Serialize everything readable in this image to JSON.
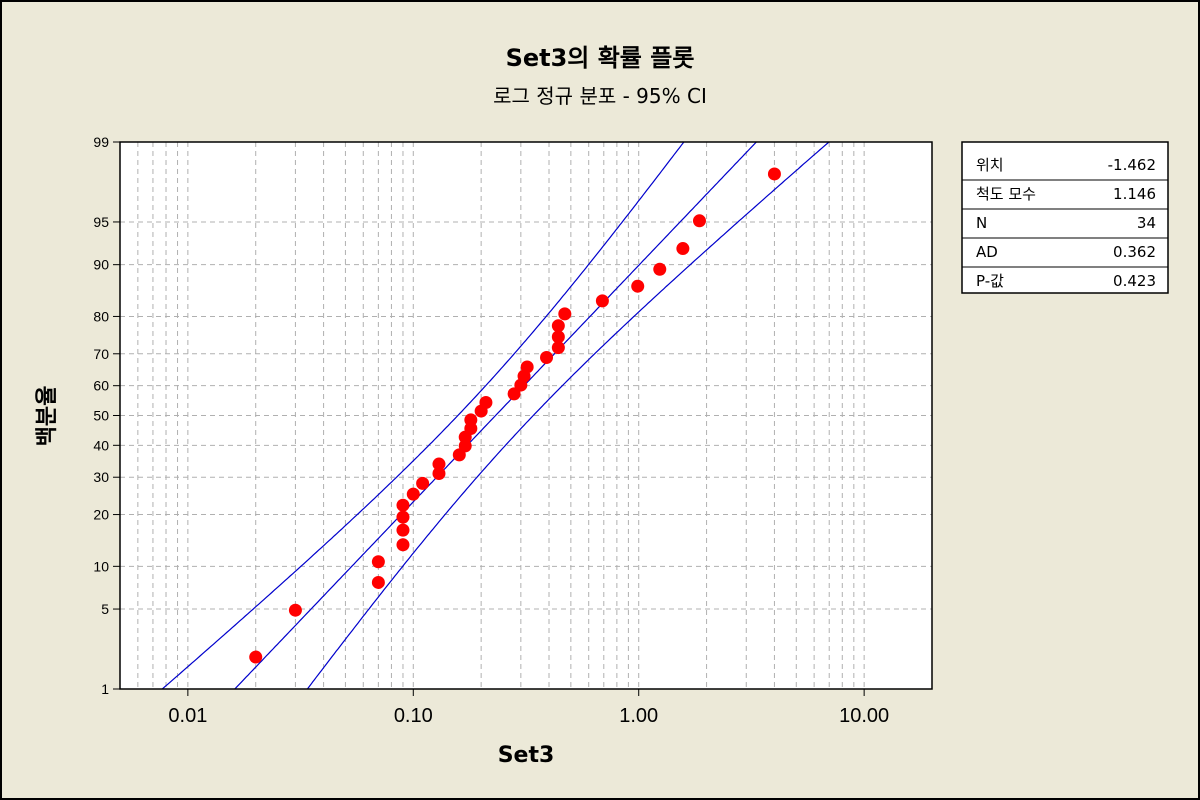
{
  "colors": {
    "background": "#ece9d8",
    "plot_background": "#ffffff",
    "points": "#ff0000",
    "lines": "#0000cc",
    "grid": "#b0b0b0"
  },
  "chart_data": {
    "type": "scatter",
    "title": "Set3의 확률 플롯",
    "subtitle": "로그 정규 분포 - 95% CI",
    "xlabel": "Set3",
    "ylabel": "백분율",
    "x_scale": "log",
    "y_scale": "normal-probability",
    "xlim": [
      0.005,
      20
    ],
    "ylim": [
      1,
      99
    ],
    "x_ticks": [
      {
        "value": 0.01,
        "label": "0.01"
      },
      {
        "value": 0.1,
        "label": "0.10"
      },
      {
        "value": 1,
        "label": "1.00"
      },
      {
        "value": 10,
        "label": "10.00"
      }
    ],
    "y_ticks": [
      {
        "value": 1,
        "label": "1"
      },
      {
        "value": 5,
        "label": "5"
      },
      {
        "value": 10,
        "label": "10"
      },
      {
        "value": 20,
        "label": "20"
      },
      {
        "value": 30,
        "label": "30"
      },
      {
        "value": 40,
        "label": "40"
      },
      {
        "value": 50,
        "label": "50"
      },
      {
        "value": 60,
        "label": "60"
      },
      {
        "value": 70,
        "label": "70"
      },
      {
        "value": 80,
        "label": "80"
      },
      {
        "value": 90,
        "label": "90"
      },
      {
        "value": 95,
        "label": "95"
      },
      {
        "value": 99,
        "label": "99"
      }
    ],
    "grid": true,
    "legend_position": "right",
    "stats": [
      {
        "label": "위치",
        "value": "-1.462"
      },
      {
        "label": "척도 모수",
        "value": "1.146"
      },
      {
        "label": "N",
        "value": "34"
      },
      {
        "label": "AD",
        "value": "0.362"
      },
      {
        "label": "P-값",
        "value": "0.423"
      }
    ],
    "fit": {
      "location": -1.462,
      "scale": 1.146,
      "n": 34,
      "ci": 0.95
    },
    "points": [
      {
        "x": 0.02,
        "y": 2.0
      },
      {
        "x": 0.03,
        "y": 4.9
      },
      {
        "x": 0.07,
        "y": 7.8
      },
      {
        "x": 0.07,
        "y": 10.7
      },
      {
        "x": 0.09,
        "y": 13.6
      },
      {
        "x": 0.09,
        "y": 16.5
      },
      {
        "x": 0.09,
        "y": 19.4
      },
      {
        "x": 0.09,
        "y": 22.3
      },
      {
        "x": 0.1,
        "y": 25.2
      },
      {
        "x": 0.11,
        "y": 28.2
      },
      {
        "x": 0.13,
        "y": 31.1
      },
      {
        "x": 0.13,
        "y": 34.0
      },
      {
        "x": 0.16,
        "y": 36.9
      },
      {
        "x": 0.17,
        "y": 39.8
      },
      {
        "x": 0.17,
        "y": 42.7
      },
      {
        "x": 0.18,
        "y": 45.6
      },
      {
        "x": 0.18,
        "y": 48.5
      },
      {
        "x": 0.2,
        "y": 51.5
      },
      {
        "x": 0.21,
        "y": 54.4
      },
      {
        "x": 0.28,
        "y": 57.3
      },
      {
        "x": 0.3,
        "y": 60.2
      },
      {
        "x": 0.31,
        "y": 63.1
      },
      {
        "x": 0.32,
        "y": 66.0
      },
      {
        "x": 0.39,
        "y": 68.9
      },
      {
        "x": 0.44,
        "y": 71.8
      },
      {
        "x": 0.44,
        "y": 74.8
      },
      {
        "x": 0.44,
        "y": 77.7
      },
      {
        "x": 0.47,
        "y": 80.6
      },
      {
        "x": 0.69,
        "y": 83.5
      },
      {
        "x": 0.99,
        "y": 86.4
      },
      {
        "x": 1.24,
        "y": 89.3
      },
      {
        "x": 1.57,
        "y": 92.2
      },
      {
        "x": 1.86,
        "y": 95.1
      },
      {
        "x": 4.0,
        "y": 98.0
      }
    ]
  }
}
